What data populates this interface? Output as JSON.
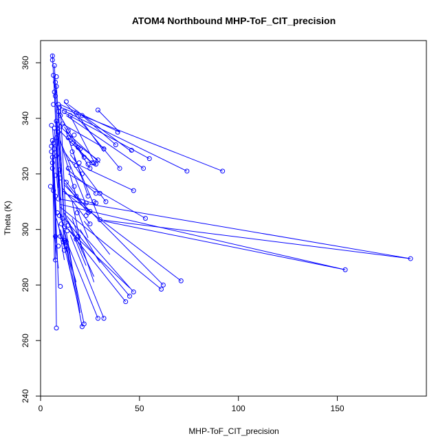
{
  "chart_data": {
    "type": "scatter",
    "title": "ATOM4 Northbound MHP-ToF_CIT_precision",
    "xlabel": "MHP-ToF_CIT_precision",
    "ylabel": "Theta (K)",
    "xlim": [
      0,
      195
    ],
    "ylim": [
      240,
      368
    ],
    "xticks": [
      0,
      50,
      100,
      150
    ],
    "yticks": [
      240,
      260,
      280,
      300,
      320,
      340,
      360
    ],
    "grid": false,
    "legend": "none",
    "color": "#0000ff",
    "points": [
      [
        6,
        362.5
      ],
      [
        6,
        361
      ],
      [
        7,
        359
      ],
      [
        6.5,
        355.5
      ],
      [
        8,
        355
      ],
      [
        7.5,
        353
      ],
      [
        8,
        351.5
      ],
      [
        7,
        349.5
      ],
      [
        7.5,
        348
      ],
      [
        6.5,
        345
      ],
      [
        9,
        345
      ],
      [
        9.5,
        344
      ],
      [
        9,
        342.5
      ],
      [
        10,
        341
      ],
      [
        8,
        339
      ],
      [
        5.5,
        337.5
      ],
      [
        7,
        336.5
      ],
      [
        10,
        337
      ],
      [
        9,
        335
      ],
      [
        8,
        333
      ],
      [
        6,
        332
      ],
      [
        6.5,
        331
      ],
      [
        5.5,
        330
      ],
      [
        7,
        329
      ],
      [
        5.5,
        328
      ],
      [
        6,
        326
      ],
      [
        8,
        326.5
      ],
      [
        6,
        324
      ],
      [
        6,
        322
      ],
      [
        9.5,
        321.5
      ],
      [
        7.5,
        319.5
      ],
      [
        10,
        318.5
      ],
      [
        5,
        315.5
      ],
      [
        6.5,
        314
      ],
      [
        7.5,
        312
      ],
      [
        9,
        311
      ],
      [
        8.5,
        306
      ],
      [
        9.5,
        305
      ],
      [
        11,
        304
      ],
      [
        10.5,
        302
      ],
      [
        12,
        301
      ],
      [
        14,
        301.5
      ],
      [
        13.5,
        299.5
      ],
      [
        10,
        297.5
      ],
      [
        7.5,
        297.5
      ],
      [
        12,
        296
      ],
      [
        13,
        295.5
      ],
      [
        11.5,
        295.5
      ],
      [
        12.5,
        296
      ],
      [
        13,
        294
      ],
      [
        9,
        294
      ],
      [
        12,
        292.5
      ],
      [
        7.5,
        289
      ],
      [
        10,
        279.5
      ],
      [
        8,
        264.5
      ],
      [
        13,
        346
      ],
      [
        12,
        342.5
      ],
      [
        15,
        341
      ],
      [
        18,
        342
      ],
      [
        21,
        341
      ],
      [
        29,
        343
      ],
      [
        11,
        338
      ],
      [
        14,
        335.5
      ],
      [
        17,
        334
      ],
      [
        14,
        333
      ],
      [
        16,
        331
      ],
      [
        19,
        329.5
      ],
      [
        16,
        328
      ],
      [
        20,
        329
      ],
      [
        22,
        326
      ],
      [
        19.5,
        324
      ],
      [
        18,
        323
      ],
      [
        14,
        322
      ],
      [
        21,
        320
      ],
      [
        27,
        324
      ],
      [
        29,
        325
      ],
      [
        25,
        322
      ],
      [
        24,
        323.5
      ],
      [
        26,
        324
      ],
      [
        28,
        323.5
      ],
      [
        32,
        329
      ],
      [
        38,
        330.5
      ],
      [
        39,
        335
      ],
      [
        46,
        328.5
      ],
      [
        55,
        325.5
      ],
      [
        52,
        322
      ],
      [
        40,
        322
      ],
      [
        74,
        321
      ],
      [
        92,
        321
      ],
      [
        17,
        315.5
      ],
      [
        13,
        317
      ],
      [
        18,
        312
      ],
      [
        24,
        312
      ],
      [
        23,
        309.5
      ],
      [
        27,
        310
      ],
      [
        28,
        313
      ],
      [
        30,
        313
      ],
      [
        33,
        310
      ],
      [
        47,
        314
      ],
      [
        24,
        306
      ],
      [
        23,
        305
      ],
      [
        28,
        309.5
      ],
      [
        25,
        306.5
      ],
      [
        18.5,
        306
      ],
      [
        30,
        303.5
      ],
      [
        53,
        304
      ],
      [
        25,
        302
      ],
      [
        19,
        297.5
      ],
      [
        18,
        296.5
      ],
      [
        154,
        285.5
      ],
      [
        187,
        289.5
      ],
      [
        62,
        280
      ],
      [
        71,
        281.5
      ],
      [
        61,
        278.5
      ],
      [
        47,
        277.5
      ],
      [
        45,
        276
      ],
      [
        43,
        274
      ],
      [
        29,
        268
      ],
      [
        32,
        268
      ],
      [
        22,
        266
      ],
      [
        21,
        265
      ]
    ],
    "segments": [
      [
        [
          6,
          363
        ],
        [
          8,
          335
        ]
      ],
      [
        [
          7,
          359
        ],
        [
          9,
          330
        ]
      ],
      [
        [
          7,
          355
        ],
        [
          10,
          320
        ]
      ],
      [
        [
          8,
          352
        ],
        [
          11,
          318
        ]
      ],
      [
        [
          7,
          349
        ],
        [
          9,
          315
        ]
      ],
      [
        [
          10,
          345
        ],
        [
          13,
          300
        ]
      ],
      [
        [
          9,
          344
        ],
        [
          12,
          303
        ]
      ],
      [
        [
          8,
          339
        ],
        [
          10,
          306
        ]
      ],
      [
        [
          6,
          337
        ],
        [
          9,
          312
        ]
      ],
      [
        [
          7,
          336
        ],
        [
          10,
          307
        ]
      ],
      [
        [
          9,
          335
        ],
        [
          12,
          302
        ]
      ],
      [
        [
          8,
          333
        ],
        [
          12,
          294
        ]
      ],
      [
        [
          6,
          332
        ],
        [
          8,
          305
        ]
      ],
      [
        [
          6,
          330
        ],
        [
          7,
          313
        ]
      ],
      [
        [
          6,
          328
        ],
        [
          8,
          298
        ]
      ],
      [
        [
          6,
          326
        ],
        [
          7,
          289
        ]
      ],
      [
        [
          6,
          322
        ],
        [
          8,
          295
        ]
      ],
      [
        [
          9,
          321
        ],
        [
          10,
          304
        ]
      ],
      [
        [
          7,
          320
        ],
        [
          8,
          265
        ]
      ],
      [
        [
          7,
          318
        ],
        [
          9,
          280
        ]
      ],
      [
        [
          10,
          345
        ],
        [
          40,
          335
        ]
      ],
      [
        [
          10,
          344
        ],
        [
          92,
          321
        ]
      ],
      [
        [
          11,
          343
        ],
        [
          74,
          321
        ]
      ],
      [
        [
          12,
          342
        ],
        [
          55,
          325.5
        ]
      ],
      [
        [
          13,
          341
        ],
        [
          52,
          322
        ]
      ],
      [
        [
          14,
          345
        ],
        [
          46,
          328
        ]
      ],
      [
        [
          12,
          346
        ],
        [
          40,
          322
        ]
      ],
      [
        [
          11,
          338
        ],
        [
          33,
          329
        ]
      ],
      [
        [
          10,
          337
        ],
        [
          30,
          324
        ]
      ],
      [
        [
          9,
          336
        ],
        [
          27,
          323
        ]
      ],
      [
        [
          9,
          342
        ],
        [
          22,
          326
        ]
      ],
      [
        [
          15,
          341
        ],
        [
          28,
          323
        ]
      ],
      [
        [
          18,
          342
        ],
        [
          32,
          328
        ]
      ],
      [
        [
          21,
          341
        ],
        [
          38,
          330.5
        ]
      ],
      [
        [
          29,
          343
        ],
        [
          40,
          335
        ]
      ],
      [
        [
          13,
          335
        ],
        [
          24,
          312
        ]
      ],
      [
        [
          12,
          337
        ],
        [
          25,
          322
        ]
      ],
      [
        [
          14,
          333
        ],
        [
          29,
          325
        ]
      ],
      [
        [
          11,
          330
        ],
        [
          23,
          309
        ]
      ],
      [
        [
          16,
          331
        ],
        [
          26,
          324
        ]
      ],
      [
        [
          10,
          332
        ],
        [
          18,
          312
        ]
      ],
      [
        [
          12,
          328
        ],
        [
          20,
          320
        ]
      ],
      [
        [
          14,
          325
        ],
        [
          47,
          314
        ]
      ],
      [
        [
          13,
          322
        ],
        [
          28,
          313
        ]
      ],
      [
        [
          15,
          327
        ],
        [
          33,
          310
        ]
      ],
      [
        [
          17,
          326
        ],
        [
          30,
          303.5
        ]
      ],
      [
        [
          12,
          318
        ],
        [
          25,
          306
        ]
      ],
      [
        [
          14,
          320
        ],
        [
          53,
          304
        ]
      ],
      [
        [
          11,
          315
        ],
        [
          25,
          302
        ]
      ],
      [
        [
          13,
          316
        ],
        [
          24,
          306
        ]
      ],
      [
        [
          12,
          313
        ],
        [
          28,
          309
        ]
      ],
      [
        [
          9,
          311
        ],
        [
          187,
          289.5
        ]
      ],
      [
        [
          10,
          309
        ],
        [
          154,
          285.5
        ]
      ],
      [
        [
          30,
          303.5
        ],
        [
          187,
          289.5
        ]
      ],
      [
        [
          32,
          303
        ],
        [
          154,
          285.5
        ]
      ],
      [
        [
          11,
          314
        ],
        [
          71,
          281.5
        ]
      ],
      [
        [
          12,
          316
        ],
        [
          62,
          280
        ]
      ],
      [
        [
          10,
          308
        ],
        [
          61,
          278.5
        ]
      ],
      [
        [
          13,
          305
        ],
        [
          47,
          277.5
        ]
      ],
      [
        [
          12,
          304
        ],
        [
          45,
          276
        ]
      ],
      [
        [
          14,
          300
        ],
        [
          43,
          274
        ]
      ],
      [
        [
          11,
          302
        ],
        [
          45,
          279
        ]
      ],
      [
        [
          15,
          298
        ],
        [
          32,
          268
        ]
      ],
      [
        [
          13,
          296
        ],
        [
          29,
          268
        ]
      ],
      [
        [
          12,
          300
        ],
        [
          22,
          266
        ]
      ],
      [
        [
          10,
          306
        ],
        [
          21,
          265
        ]
      ],
      [
        [
          13,
          299
        ],
        [
          20,
          270
        ]
      ],
      [
        [
          11,
          297
        ],
        [
          19,
          273
        ]
      ],
      [
        [
          14,
          303
        ],
        [
          27,
          283
        ]
      ],
      [
        [
          12,
          306
        ],
        [
          23,
          287
        ]
      ],
      [
        [
          8,
          304
        ],
        [
          13,
          291
        ]
      ],
      [
        [
          9,
          302
        ],
        [
          12,
          289
        ]
      ],
      [
        [
          10,
          300
        ],
        [
          18,
          281
        ]
      ],
      [
        [
          13,
          294
        ],
        [
          15,
          285
        ]
      ],
      [
        [
          7,
          298
        ],
        [
          9,
          286
        ]
      ],
      [
        [
          16,
          310
        ],
        [
          21,
          292
        ]
      ],
      [
        [
          18,
          308
        ],
        [
          24,
          297
        ]
      ],
      [
        [
          20,
          300
        ],
        [
          30,
          288
        ]
      ],
      [
        [
          22,
          303
        ],
        [
          35,
          291
        ]
      ],
      [
        [
          16,
          304
        ],
        [
          27,
          281
        ]
      ]
    ]
  }
}
